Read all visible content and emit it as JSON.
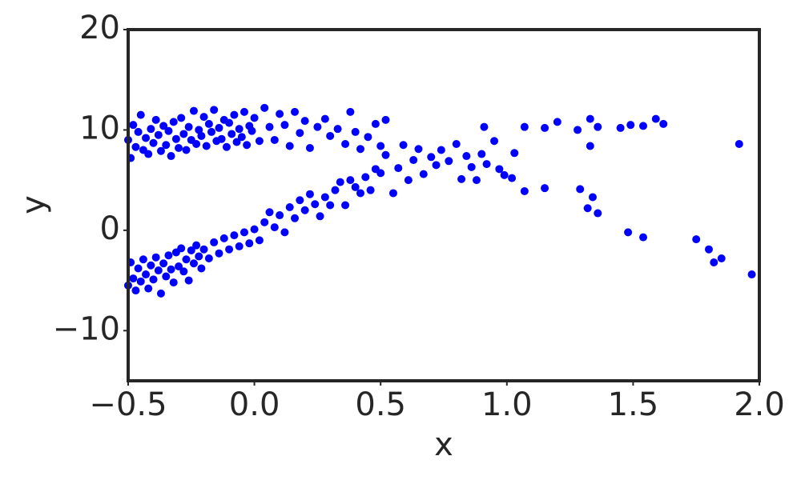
{
  "chart_data": {
    "type": "scatter",
    "xlabel": "x",
    "ylabel": "y",
    "color": "#0000ff",
    "xlim": [
      -0.5,
      2.0
    ],
    "xticks": [
      {
        "value": -0.5,
        "label": "−0.5"
      },
      {
        "value": 0,
        "label": "0.0"
      },
      {
        "value": 0.5,
        "label": "0.5"
      },
      {
        "value": 1,
        "label": "1.0"
      },
      {
        "value": 1.5,
        "label": "1.5"
      },
      {
        "value": 2,
        "label": "2.0"
      }
    ],
    "ylim": [
      -15,
      20
    ],
    "yticks": [
      {
        "value": -10,
        "label": "−10"
      },
      0,
      10,
      20
    ],
    "x": [
      -0.5,
      -0.49,
      -0.48,
      -0.47,
      -0.46,
      -0.45,
      -0.44,
      -0.43,
      -0.42,
      -0.41,
      -0.4,
      -0.39,
      -0.38,
      -0.37,
      -0.36,
      -0.35,
      -0.34,
      -0.33,
      -0.32,
      -0.31,
      -0.3,
      -0.29,
      -0.28,
      -0.27,
      -0.26,
      -0.25,
      -0.24,
      -0.23,
      -0.22,
      -0.21,
      -0.2,
      -0.19,
      -0.18,
      -0.17,
      -0.16,
      -0.15,
      -0.14,
      -0.13,
      -0.12,
      -0.11,
      -0.1,
      -0.09,
      -0.08,
      -0.07,
      -0.06,
      -0.05,
      -0.04,
      -0.03,
      -0.02,
      -0.01,
      0,
      0.02,
      0.04,
      0.06,
      0.08,
      0.1,
      0.12,
      0.14,
      0.16,
      0.18,
      0.2,
      0.22,
      0.25,
      0.28,
      0.3,
      0.33,
      0.36,
      0.38,
      0.4,
      0.42,
      0.45,
      0.48,
      0.5,
      0.52,
      -0.5,
      -0.49,
      -0.48,
      -0.47,
      -0.46,
      -0.45,
      -0.44,
      -0.43,
      -0.42,
      -0.41,
      -0.4,
      -0.39,
      -0.38,
      -0.37,
      -0.36,
      -0.35,
      -0.34,
      -0.33,
      -0.32,
      -0.31,
      -0.3,
      -0.29,
      -0.28,
      -0.27,
      -0.26,
      -0.25,
      -0.24,
      -0.23,
      -0.22,
      -0.21,
      -0.2,
      -0.18,
      -0.16,
      -0.14,
      -0.12,
      -0.1,
      -0.08,
      -0.06,
      -0.04,
      -0.02,
      0,
      0.02,
      0.04,
      0.06,
      0.08,
      0.1,
      0.12,
      0.14,
      0.16,
      0.18,
      0.2,
      0.22,
      0.24,
      0.26,
      0.28,
      0.3,
      0.32,
      0.34,
      0.36,
      0.38,
      0.4,
      0.42,
      0.44,
      0.46,
      0.48,
      0.5,
      0.52,
      0.55,
      0.57,
      0.59,
      0.61,
      0.63,
      0.65,
      0.67,
      0.7,
      0.72,
      0.74,
      0.77,
      0.8,
      0.82,
      0.84,
      0.86,
      0.88,
      0.9,
      0.92,
      0.95,
      0.97,
      0.99,
      1.02,
      1.03,
      0.91,
      1.07,
      1.15,
      1.2,
      1.28,
      1.33,
      1.36,
      1.45,
      1.49,
      1.54,
      1.59,
      1.62,
      1.92,
      1.33,
      1.07,
      1.15,
      1.29,
      1.32,
      1.34,
      1.36,
      1.48,
      1.54,
      1.75,
      1.8,
      1.82,
      1.85,
      1.97
    ],
    "values": [
      9.0,
      7.2,
      10.5,
      8.3,
      9.8,
      11.5,
      8.0,
      9.2,
      7.6,
      10.1,
      8.7,
      11.0,
      9.5,
      7.9,
      10.4,
      8.5,
      9.9,
      7.4,
      10.8,
      9.1,
      8.2,
      11.2,
      9.6,
      8.0,
      10.3,
      9.0,
      11.9,
      8.6,
      10.0,
      9.4,
      11.3,
      8.4,
      10.6,
      9.8,
      12.0,
      8.9,
      10.2,
      9.1,
      11.0,
      8.3,
      10.7,
      9.6,
      11.5,
      8.8,
      10.1,
      9.3,
      11.8,
      8.5,
      10.4,
      9.9,
      11.2,
      8.9,
      12.2,
      10.3,
      9.0,
      11.6,
      10.5,
      8.4,
      11.8,
      9.7,
      10.9,
      8.2,
      10.3,
      11.1,
      9.4,
      10.1,
      8.6,
      11.8,
      9.8,
      8.1,
      9.3,
      10.6,
      8.4,
      11.0,
      -5.5,
      -3.2,
      -4.8,
      -6.0,
      -3.8,
      -5.1,
      -2.9,
      -4.4,
      -5.8,
      -3.5,
      -4.9,
      -2.7,
      -4.0,
      -6.3,
      -3.3,
      -4.6,
      -2.5,
      -3.9,
      -5.2,
      -2.2,
      -3.6,
      -1.8,
      -4.1,
      -2.9,
      -5.0,
      -2.0,
      -3.3,
      -1.5,
      -2.6,
      -3.8,
      -1.9,
      -2.8,
      -1.2,
      -2.3,
      -0.8,
      -1.9,
      -0.5,
      -1.6,
      -0.2,
      -1.3,
      0.1,
      -1.0,
      0.8,
      1.8,
      0.3,
      1.5,
      -0.2,
      2.3,
      1.2,
      3.0,
      2.0,
      3.6,
      2.6,
      1.4,
      3.3,
      2.5,
      4.0,
      4.8,
      2.5,
      5.0,
      4.3,
      3.7,
      5.3,
      4.0,
      6.1,
      5.7,
      7.5,
      3.7,
      6.2,
      8.5,
      5.0,
      7.0,
      8.1,
      5.6,
      7.3,
      6.5,
      8.0,
      6.9,
      8.6,
      5.1,
      7.4,
      6.3,
      5.0,
      7.6,
      6.6,
      8.9,
      6.1,
      5.5,
      5.2,
      7.7,
      10.3,
      10.3,
      10.2,
      10.8,
      10.0,
      11.1,
      10.3,
      10.2,
      10.5,
      10.4,
      11.1,
      10.6,
      8.6,
      8.4,
      3.9,
      4.2,
      4.1,
      2.2,
      3.3,
      1.7,
      -0.2,
      -0.7,
      -0.9,
      -1.9,
      -3.2,
      -2.8,
      -4.4
    ]
  }
}
